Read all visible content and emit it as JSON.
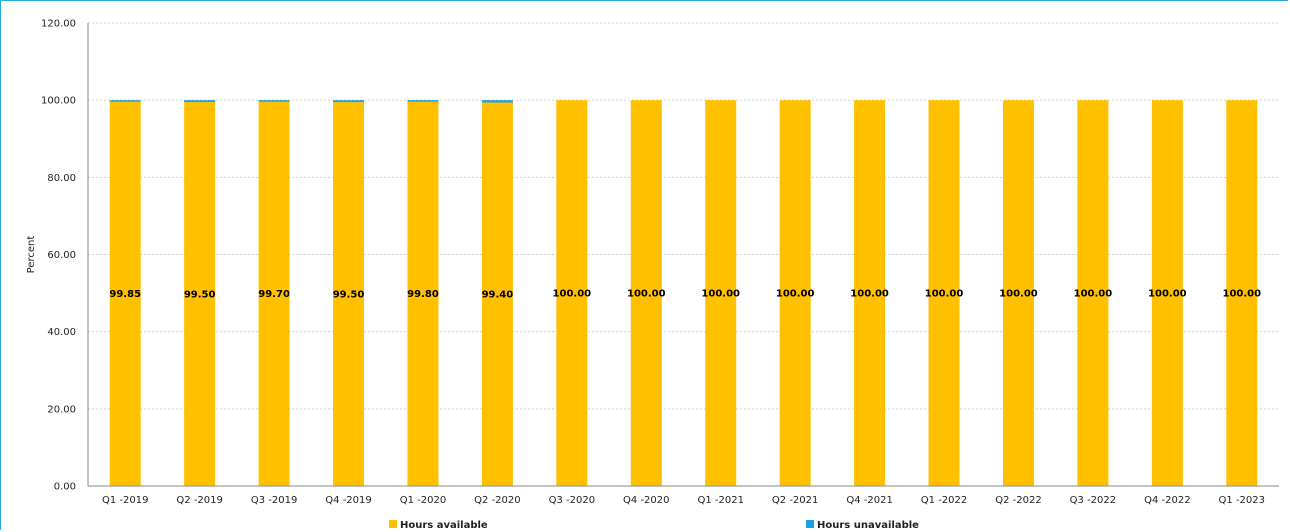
{
  "chart_data": {
    "type": "bar",
    "stacked": true,
    "ylabel": "Percent",
    "xlabel": "",
    "ylim": [
      0,
      120
    ],
    "yticks": [
      "0.00",
      "20.00",
      "40.00",
      "60.00",
      "80.00",
      "100.00",
      "120.00"
    ],
    "grid": true,
    "legend_position": "bottom",
    "categories": [
      "Q1 -2019",
      "Q2 -2019",
      "Q3 -2019",
      "Q4 -2019",
      "Q1 -2020",
      "Q2 -2020",
      "Q3 -2020",
      "Q4 -2020",
      "Q1 -2021",
      "Q2 -2021",
      "Q4 -2021",
      "Q1 -2022",
      "Q2 -2022",
      "Q3 -2022",
      "Q4 -2022",
      "Q1 -2023"
    ],
    "data_labels": [
      "99.85",
      "99.50",
      "99.70",
      "99.50",
      "99.80",
      "99.40",
      "100.00",
      "100.00",
      "100.00",
      "100.00",
      "100.00",
      "100.00",
      "100.00",
      "100.00",
      "100.00",
      "100.00"
    ],
    "series": [
      {
        "name": "Hours available",
        "color": "#ffc000",
        "values": [
          99.85,
          99.5,
          99.7,
          99.5,
          99.8,
          99.4,
          100,
          100,
          100,
          100,
          100,
          100,
          100,
          100,
          100,
          100
        ]
      },
      {
        "name": "Hours unavailable",
        "color": "#1ba1e2",
        "values": [
          0.15,
          0.5,
          0.3,
          0.5,
          0.2,
          0.6,
          0,
          0,
          0,
          0,
          0,
          0,
          0,
          0,
          0,
          0
        ]
      }
    ]
  }
}
